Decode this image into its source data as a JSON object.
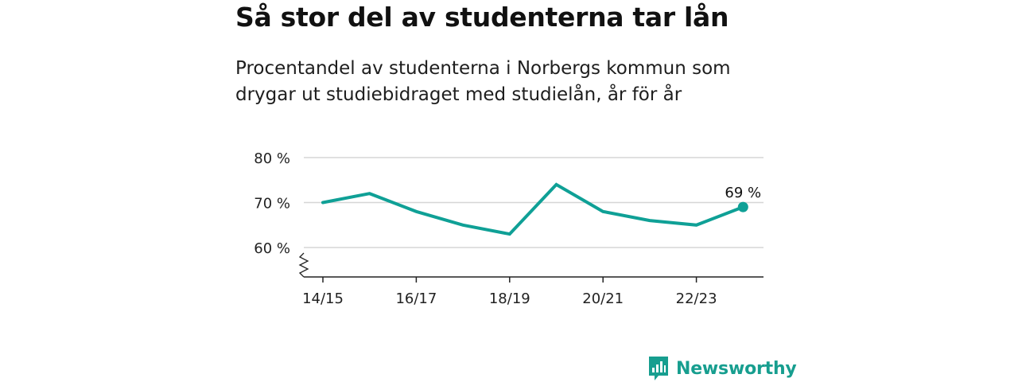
{
  "header": {
    "title": "Så stor del av studenterna tar lån",
    "subtitle": "Procentandel av studenterna i Norbergs kommun som drygar ut studiebidraget med studielån, år för år"
  },
  "chart_data": {
    "type": "line",
    "x": [
      "14/15",
      "15/16",
      "16/17",
      "17/18",
      "18/19",
      "19/20",
      "20/21",
      "21/22",
      "22/23",
      "23/24"
    ],
    "tick_labels": [
      "14/15",
      "16/17",
      "18/19",
      "20/21",
      "22/23"
    ],
    "series": [
      {
        "values": [
          70,
          72,
          68,
          65,
          63,
          74,
          68,
          66,
          65,
          69
        ]
      }
    ],
    "y_ticks": [
      "80 %",
      "70 %",
      "60 %"
    ],
    "y_tick_values": [
      80,
      70,
      60
    ],
    "ylim": [
      60,
      80
    ],
    "axis_break": true,
    "end_label": "69 %",
    "color": "#0fa096",
    "grid": true
  },
  "brand": {
    "name": "Newsworthy",
    "color": "#179e8f",
    "icon": "bar-chart-icon"
  }
}
